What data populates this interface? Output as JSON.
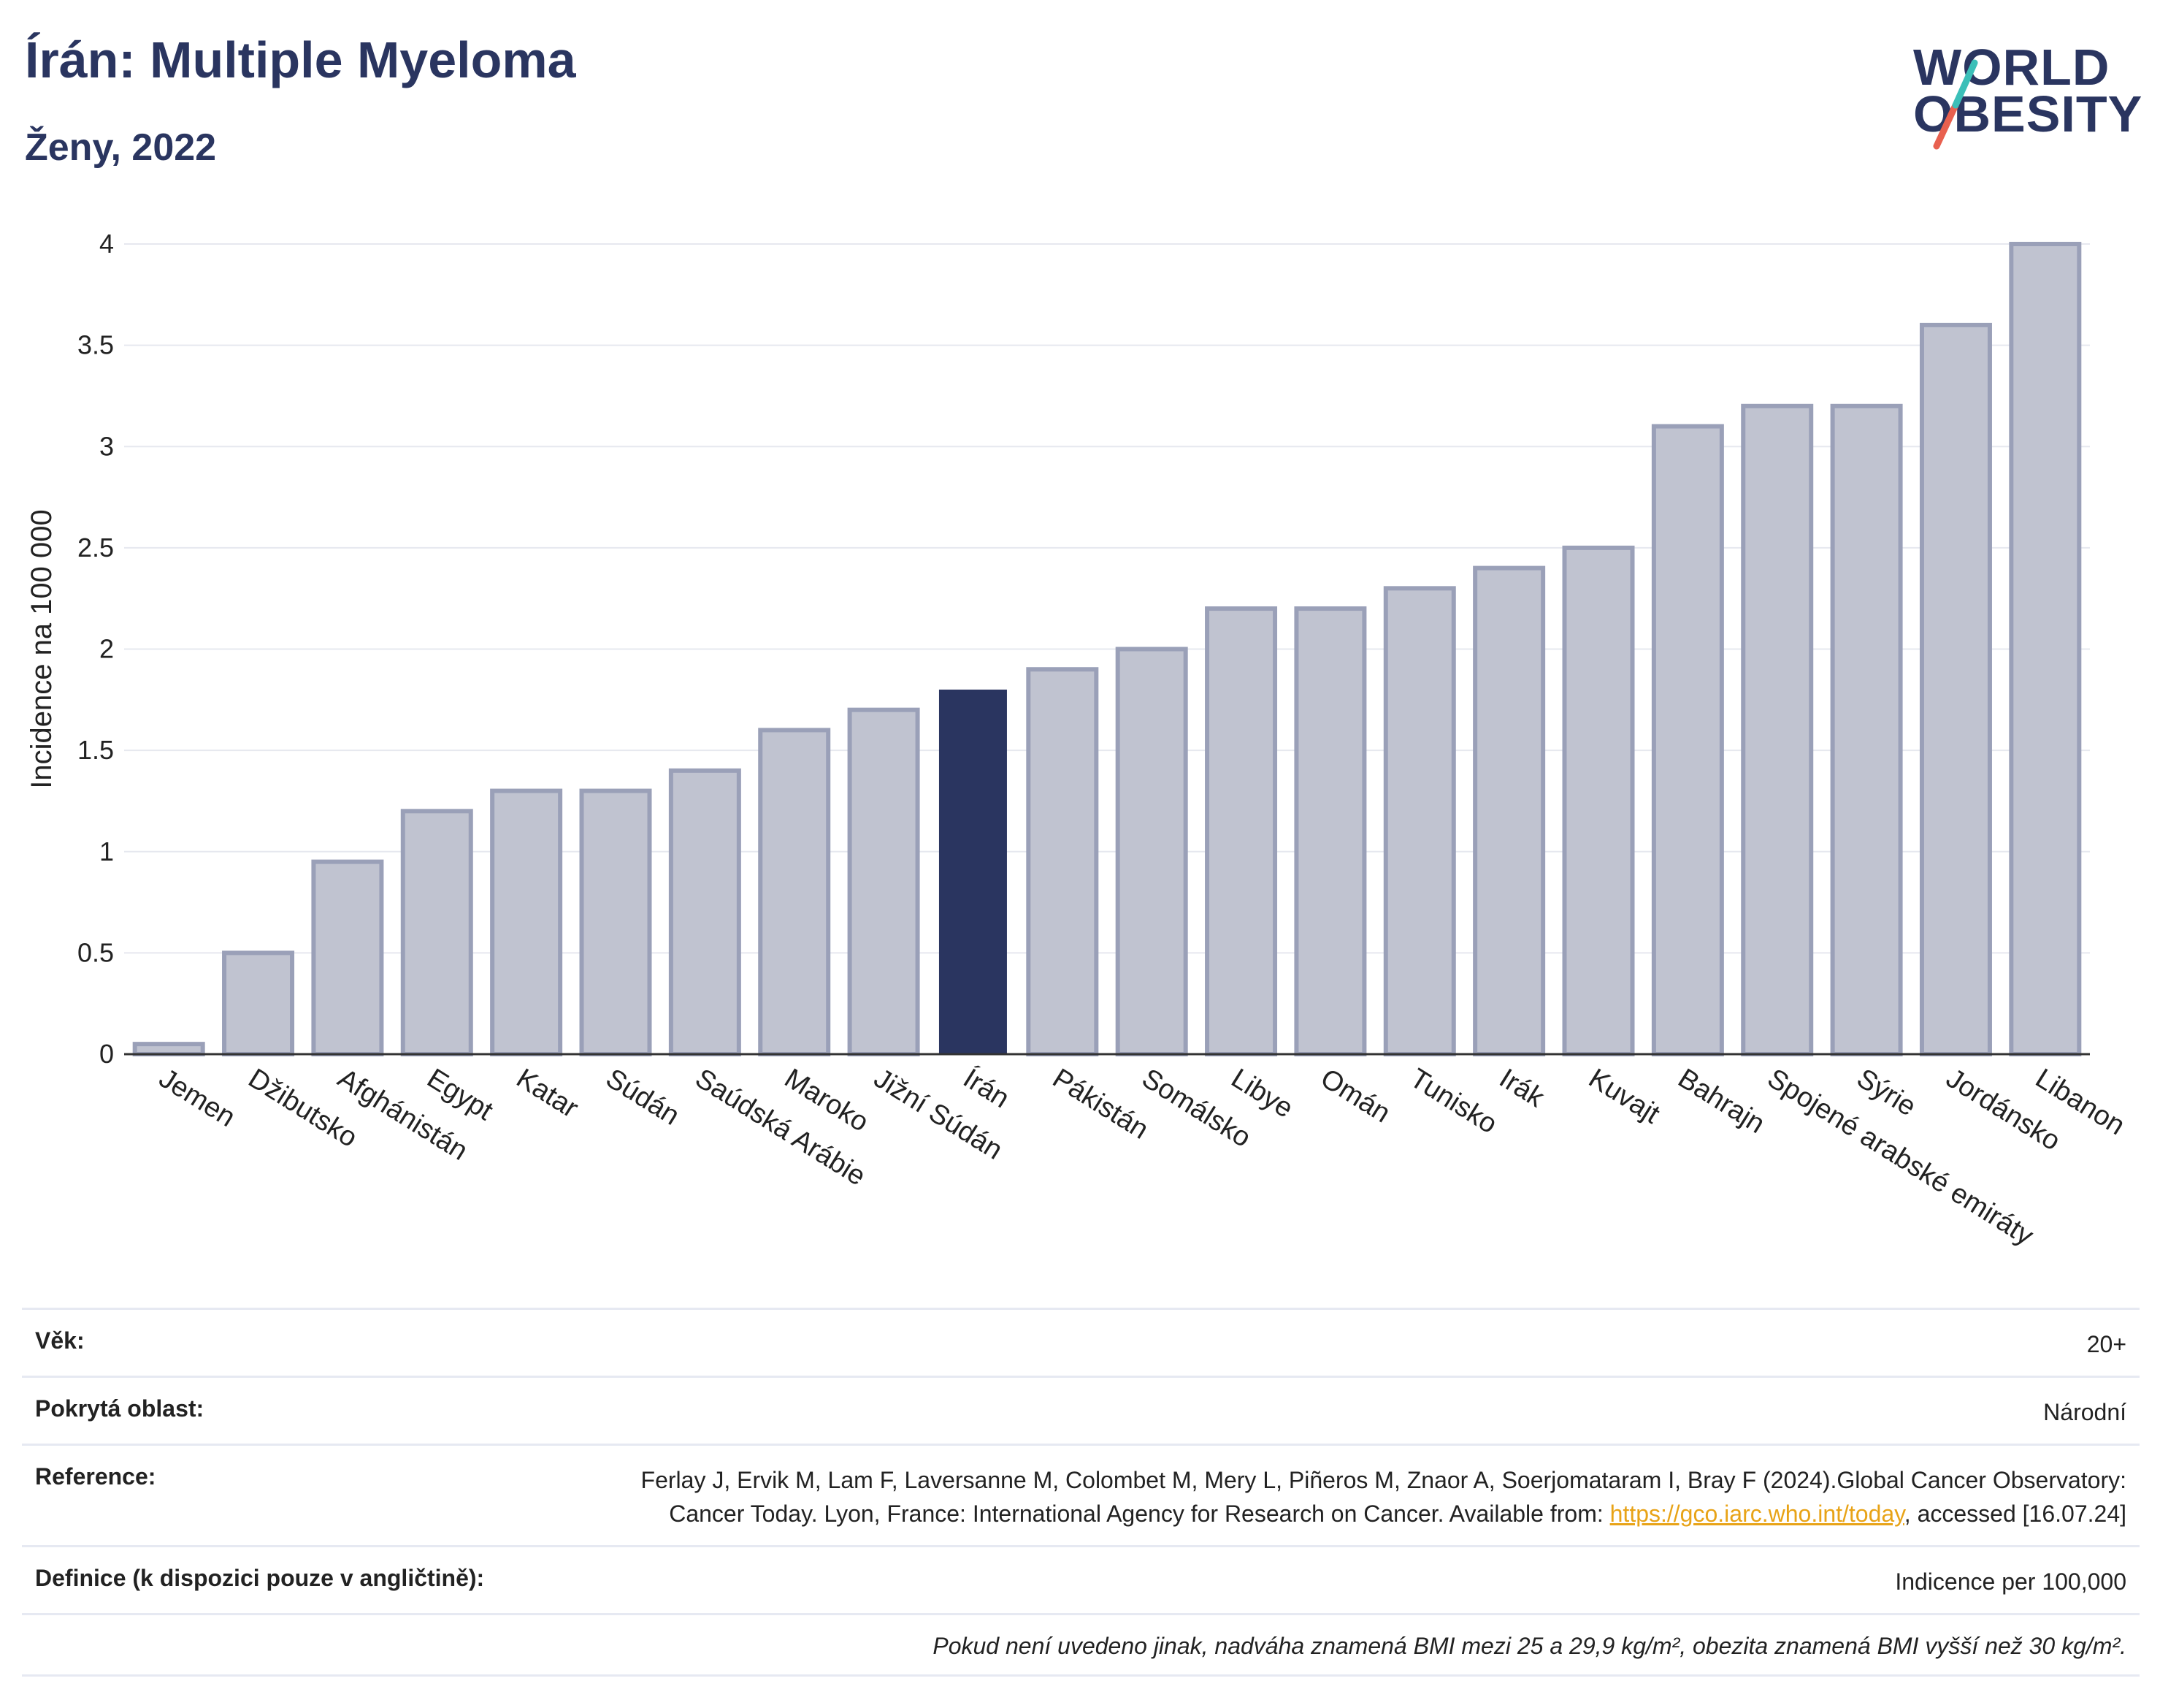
{
  "header": {
    "title": "Írán: Multiple Myeloma",
    "subtitle": "Ženy, 2022"
  },
  "logo": {
    "line1": "WORLD",
    "line2": "OBESITY",
    "colors": [
      "#2a3560",
      "#3bbfb8",
      "#e8604f"
    ]
  },
  "chart_data": {
    "type": "bar",
    "ylabel": "Incidence na 100 000",
    "ylim": [
      0,
      4
    ],
    "yticks": [
      0,
      0.5,
      1,
      1.5,
      2,
      2.5,
      3,
      3.5,
      4
    ],
    "grid": true,
    "highlight": "Írán",
    "colors": {
      "bar": "#c0c3d0",
      "bar_edge": "#9aa0b8",
      "highlight": "#2a3560"
    },
    "categories": [
      "Jemen",
      "Džibutsko",
      "Afghánistán",
      "Egypt",
      "Katar",
      "Súdán",
      "Saúdská Arábie",
      "Maroko",
      "Jižní Súdán",
      "Írán",
      "Pákistán",
      "Somálsko",
      "Libye",
      "Omán",
      "Tunisko",
      "Irák",
      "Kuvajt",
      "Bahrajn",
      "Spojené arabské emiráty",
      "Sýrie",
      "Jordánsko",
      "Libanon"
    ],
    "values": [
      0.05,
      0.5,
      0.95,
      1.2,
      1.3,
      1.3,
      1.4,
      1.6,
      1.7,
      1.8,
      1.9,
      2.0,
      2.2,
      2.2,
      2.3,
      2.4,
      2.5,
      3.1,
      3.2,
      3.2,
      3.6,
      4.0
    ]
  },
  "info": {
    "age_label": "Věk:",
    "age_value": "20+",
    "area_label": "Pokrytá oblast:",
    "area_value": "Národní",
    "ref_label": "Reference:",
    "ref_text_1": "Ferlay J, Ervik M, Lam F, Laversanne M, Colombet M, Mery L, Piñeros M, Znaor A, Soerjomataram I, Bray F (2024).Global Cancer Observatory: Cancer Today. Lyon, France: International Agency for Research on Cancer. Available from: ",
    "ref_link": "https://gco.iarc.who.int/today",
    "ref_text_2": ", accessed [16.07.24]",
    "def_label": "Definice (k dispozici pouze v angličtině):",
    "def_value": "Indicence per 100,000",
    "note": "Pokud není uvedeno jinak, nadváha znamená BMI mezi 25 a 29,9 kg/m², obezita znamená BMI vyšší než 30 kg/m²."
  }
}
